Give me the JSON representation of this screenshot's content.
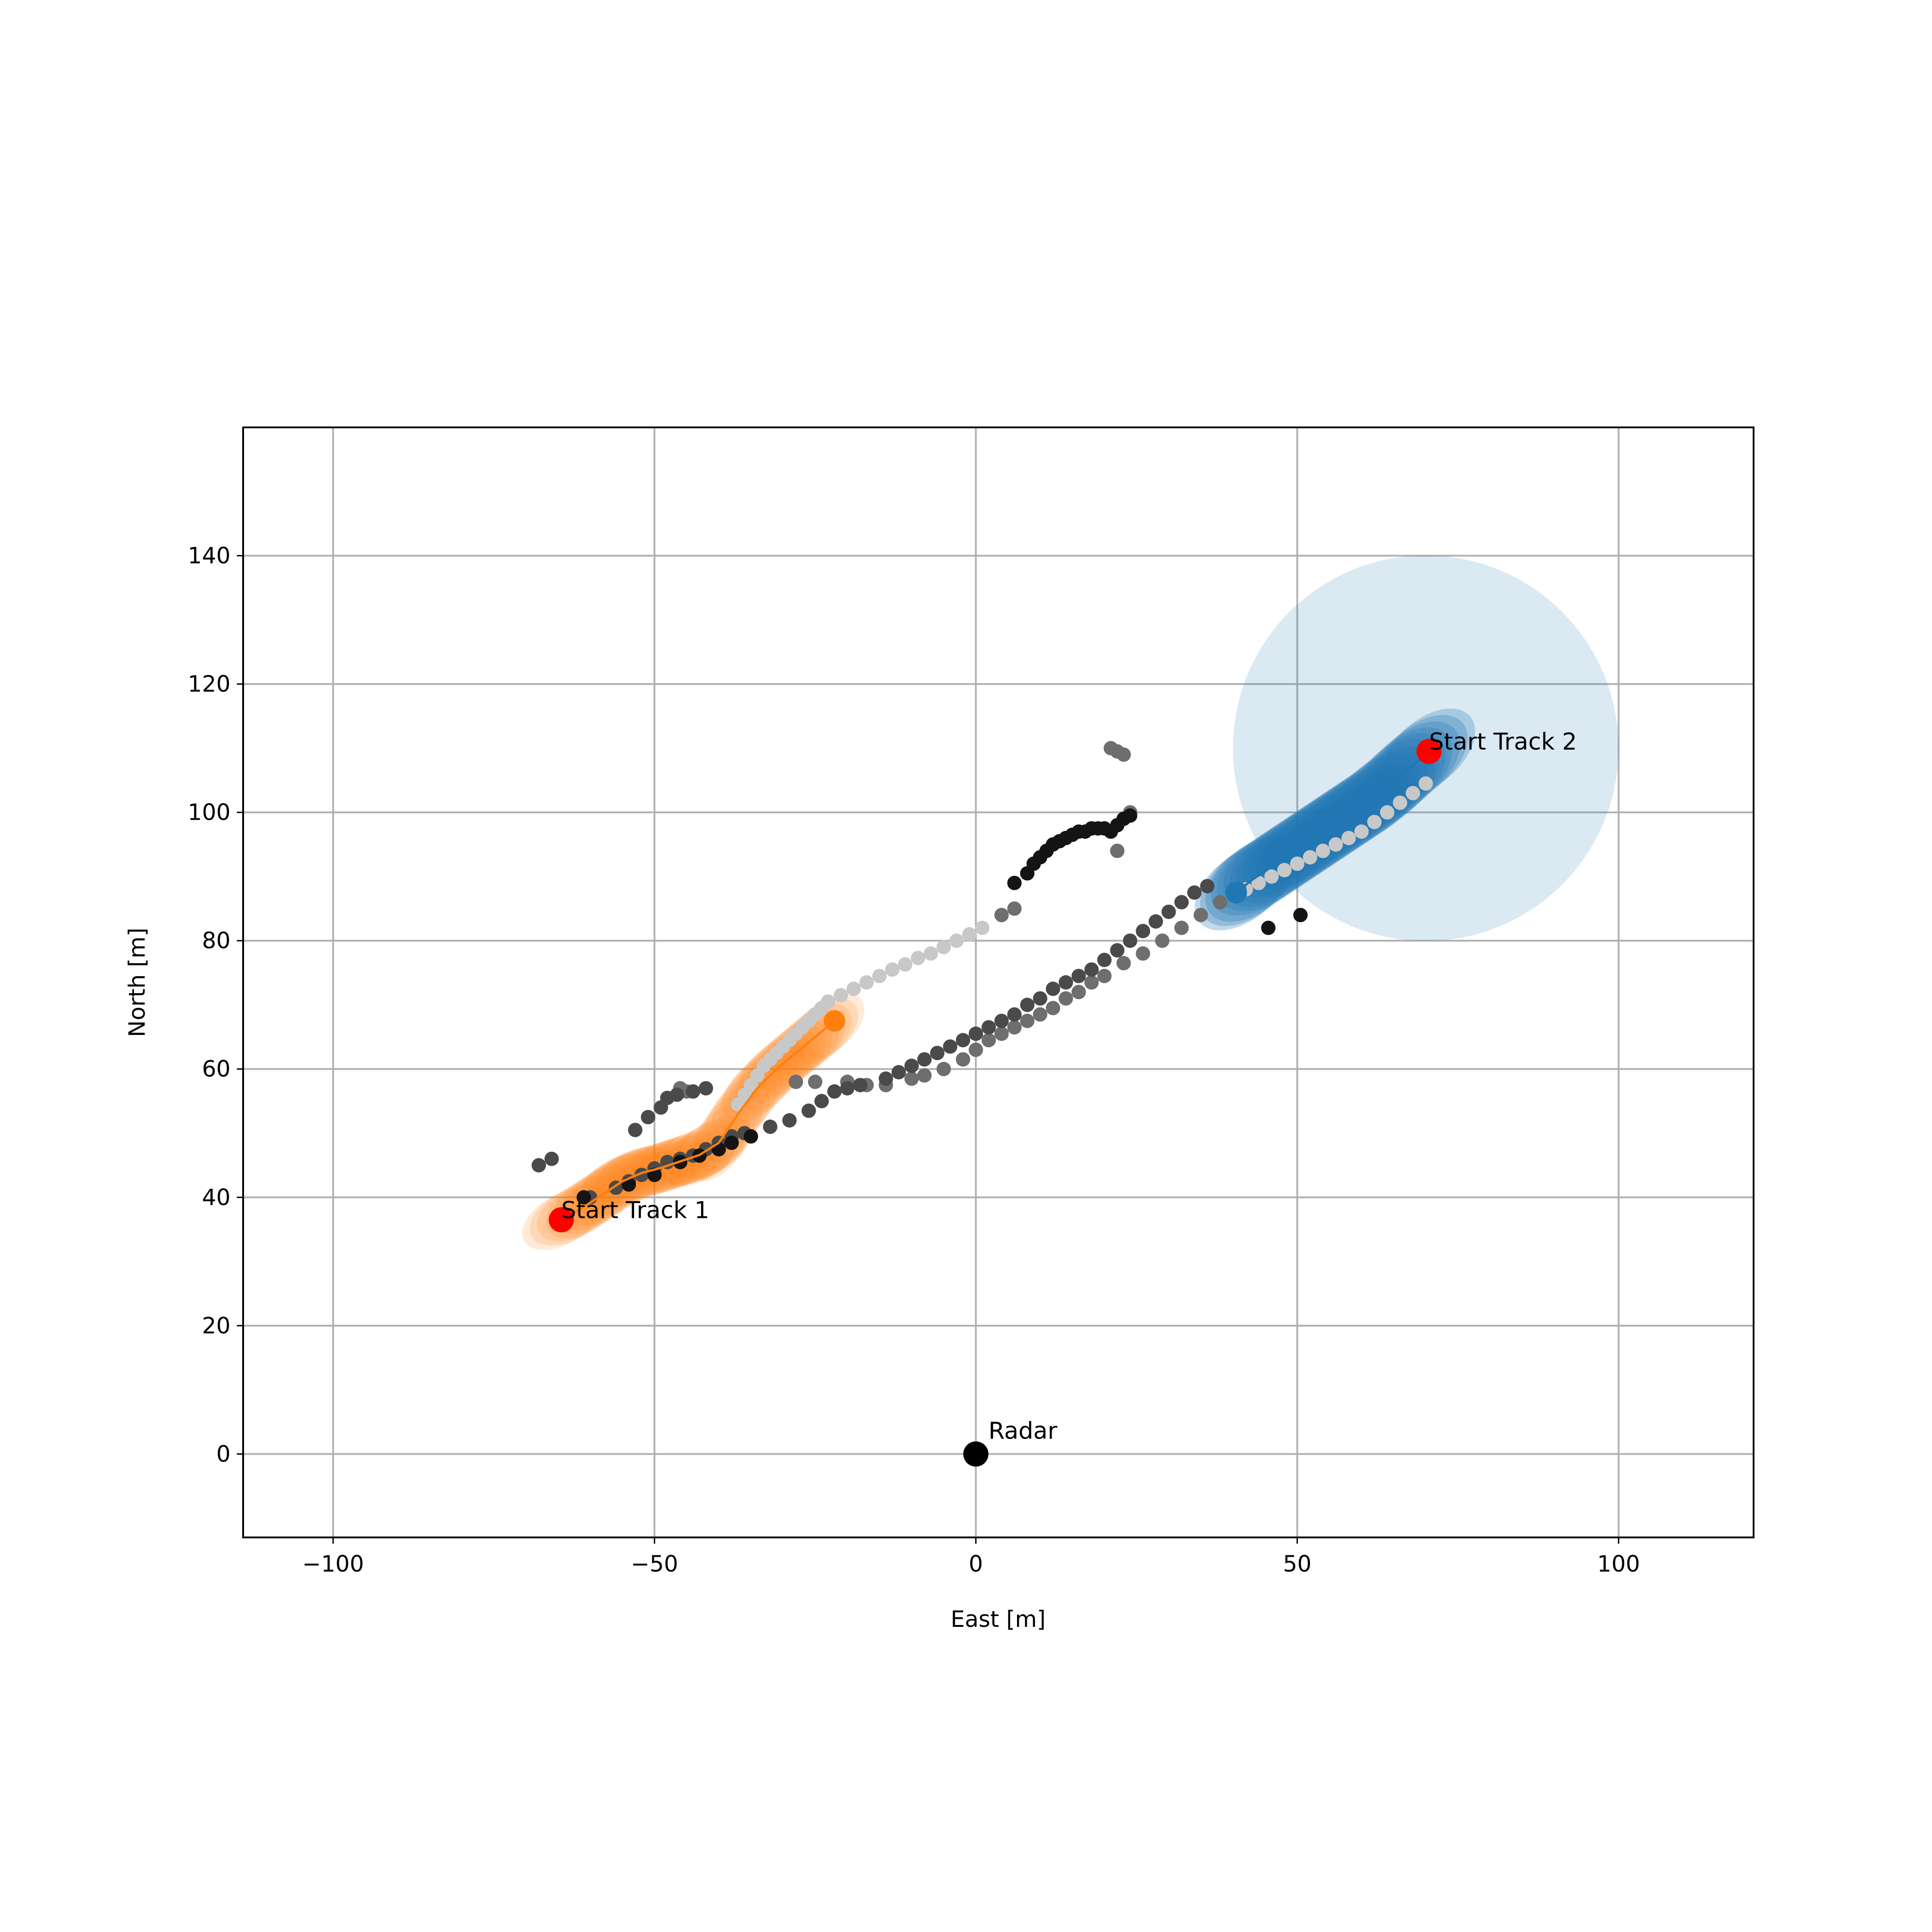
{
  "chart_data": {
    "type": "scatter",
    "title": "",
    "xlabel": "East [m]",
    "ylabel": "North [m]",
    "xlim": [
      -114,
      121
    ],
    "ylim": [
      -13,
      160
    ],
    "xticks": [
      -100,
      -50,
      0,
      50,
      100
    ],
    "yticks": [
      0,
      20,
      40,
      60,
      80,
      100,
      120,
      140
    ],
    "xtick_labels": [
      "−100",
      "−50",
      "0",
      "50",
      "100"
    ],
    "ytick_labels": [
      "0",
      "20",
      "40",
      "60",
      "80",
      "100",
      "120",
      "140"
    ],
    "grid": true,
    "legend": false,
    "colors": {
      "track1": "#ff7f0e",
      "track2": "#1f77b4",
      "start_marker": "#ff0000",
      "radar": "#000000",
      "grid": "#b0b0b0"
    },
    "annotations": [
      {
        "label": "Start Track 1",
        "x": -64.5,
        "y": 36.5
      },
      {
        "label": "Start Track 2",
        "x": 70.5,
        "y": 109.5
      },
      {
        "label": "Radar",
        "x": 0,
        "y": 0
      }
    ],
    "track2_gate": {
      "x": 70,
      "y": 110,
      "radius": 30
    },
    "track1_path": [
      [
        -64.5,
        36.5
      ],
      [
        -61,
        38.5
      ],
      [
        -58,
        40.5
      ],
      [
        -55,
        42.5
      ],
      [
        -52,
        43.8
      ],
      [
        -49,
        44.6
      ],
      [
        -46,
        45.6
      ],
      [
        -43,
        46.6
      ],
      [
        -40,
        48.5
      ],
      [
        -37,
        53
      ],
      [
        -34,
        57
      ],
      [
        -31,
        60
      ],
      [
        -28,
        62.5
      ],
      [
        -25,
        65
      ],
      [
        -22,
        67.5
      ]
    ],
    "track2_path": [
      [
        70.5,
        109.5
      ],
      [
        67,
        106.5
      ],
      [
        64,
        103.8
      ],
      [
        61,
        101.5
      ],
      [
        58,
        99.5
      ],
      [
        55,
        97.5
      ],
      [
        52,
        95.5
      ],
      [
        49,
        93.5
      ],
      [
        46,
        91.5
      ],
      [
        43,
        89.5
      ],
      [
        40.5,
        87.5
      ]
    ],
    "detections_light": [
      [
        -37,
        54.5
      ],
      [
        -36,
        56
      ],
      [
        -35,
        57.5
      ],
      [
        -34,
        59
      ],
      [
        -33,
        60.5
      ],
      [
        -32,
        61.5
      ],
      [
        -31,
        62.5
      ],
      [
        -30,
        63.5
      ],
      [
        -29,
        64.5
      ],
      [
        -28,
        65.5
      ],
      [
        -27,
        66.5
      ],
      [
        -26,
        67.5
      ],
      [
        -25,
        68.5
      ],
      [
        -24,
        69.5
      ],
      [
        -23,
        70.5
      ],
      [
        -21,
        71.5
      ],
      [
        -19,
        72.5
      ],
      [
        -17,
        73.5
      ],
      [
        -15,
        74.5
      ],
      [
        -13,
        75.5
      ],
      [
        -11,
        76.3
      ],
      [
        -9,
        77.3
      ],
      [
        -7,
        78
      ],
      [
        -5,
        79
      ],
      [
        -3,
        80
      ],
      [
        -1,
        81
      ],
      [
        1,
        82
      ],
      [
        42,
        88
      ],
      [
        44,
        89
      ],
      [
        46,
        90
      ],
      [
        48,
        91
      ],
      [
        50,
        92
      ],
      [
        52,
        93
      ],
      [
        54,
        94
      ],
      [
        56,
        95
      ],
      [
        58,
        96
      ],
      [
        60,
        97
      ],
      [
        62,
        98.5
      ],
      [
        64,
        100
      ],
      [
        66,
        101.5
      ],
      [
        68,
        103
      ],
      [
        70,
        104.5
      ]
    ],
    "detections_mid": [
      [
        4,
        84
      ],
      [
        6,
        85
      ],
      [
        21,
        110
      ],
      [
        22,
        109.5
      ],
      [
        23,
        109
      ],
      [
        -28,
        58
      ],
      [
        -25,
        58
      ],
      [
        -20,
        58
      ],
      [
        -17,
        57.5
      ],
      [
        -14,
        57.5
      ],
      [
        -10,
        58.5
      ],
      [
        -8,
        59
      ],
      [
        -5,
        60
      ],
      [
        -2,
        61.5
      ],
      [
        0,
        63
      ],
      [
        2,
        64.5
      ],
      [
        4,
        65.5
      ],
      [
        6,
        66.5
      ],
      [
        8,
        67.5
      ],
      [
        10,
        68.5
      ],
      [
        12,
        69.5
      ],
      [
        14,
        71
      ],
      [
        16,
        72
      ],
      [
        18,
        73.5
      ],
      [
        20,
        74.5
      ],
      [
        23,
        76.5
      ],
      [
        26,
        78
      ],
      [
        29,
        80
      ],
      [
        32,
        82
      ],
      [
        35,
        84
      ],
      [
        38,
        86
      ],
      [
        41,
        88
      ],
      [
        24,
        100
      ],
      [
        22,
        94
      ],
      [
        -46,
        57
      ],
      [
        -45,
        56.5
      ]
    ],
    "detections_dark": [
      [
        -68,
        45
      ],
      [
        -66,
        46
      ],
      [
        -60,
        40
      ],
      [
        -56,
        41.5
      ],
      [
        -54,
        42.5
      ],
      [
        -52,
        43.5
      ],
      [
        -50,
        44.5
      ],
      [
        -48,
        45.5
      ],
      [
        -46,
        46
      ],
      [
        -44,
        46.5
      ],
      [
        -42,
        47.5
      ],
      [
        -40,
        48.5
      ],
      [
        -38,
        49.5
      ],
      [
        -36,
        50
      ],
      [
        -32,
        51
      ],
      [
        -29,
        52
      ],
      [
        -26,
        53.5
      ],
      [
        -24,
        55
      ],
      [
        -22,
        56.5
      ],
      [
        -20,
        57
      ],
      [
        -18,
        57.5
      ],
      [
        -14,
        58.5
      ],
      [
        -12,
        59.5
      ],
      [
        -10,
        60.5
      ],
      [
        -8,
        61.5
      ],
      [
        -6,
        62.5
      ],
      [
        -4,
        63.5
      ],
      [
        -2,
        64.5
      ],
      [
        0,
        65.5
      ],
      [
        2,
        66.5
      ],
      [
        4,
        67.5
      ],
      [
        6,
        68.5
      ],
      [
        8,
        70
      ],
      [
        10,
        71
      ],
      [
        12,
        72.5
      ],
      [
        14,
        73.5
      ],
      [
        16,
        74.5
      ],
      [
        18,
        75.5
      ],
      [
        20,
        77
      ],
      [
        22,
        78.5
      ],
      [
        24,
        80
      ],
      [
        26,
        81.5
      ],
      [
        28,
        83
      ],
      [
        30,
        84.5
      ],
      [
        32,
        86
      ],
      [
        34,
        87.5
      ],
      [
        36,
        88.5
      ],
      [
        -53,
        50.5
      ],
      [
        -51,
        52.5
      ],
      [
        -49,
        54
      ],
      [
        -48,
        55.5
      ],
      [
        -46.5,
        56
      ],
      [
        -44,
        56.5
      ],
      [
        -42,
        57
      ]
    ],
    "detections_black": [
      [
        -61,
        40
      ],
      [
        -54,
        42
      ],
      [
        -50,
        43.5
      ],
      [
        -46,
        45.5
      ],
      [
        -43,
        46.5
      ],
      [
        -40,
        47.5
      ],
      [
        -38,
        48.5
      ],
      [
        -35,
        49.5
      ],
      [
        6,
        89
      ],
      [
        8,
        90.5
      ],
      [
        9,
        92
      ],
      [
        10,
        93
      ],
      [
        11,
        94
      ],
      [
        12,
        95
      ],
      [
        13,
        95.5
      ],
      [
        14,
        96
      ],
      [
        15,
        96.5
      ],
      [
        16,
        97
      ],
      [
        17,
        97
      ],
      [
        18,
        97.5
      ],
      [
        19,
        97.5
      ],
      [
        20,
        97.5
      ],
      [
        21,
        97
      ],
      [
        22,
        98
      ],
      [
        23,
        99
      ],
      [
        24,
        99.5
      ],
      [
        45.5,
        82
      ],
      [
        50.5,
        84
      ]
    ],
    "radar": {
      "x": 0,
      "y": 0
    }
  }
}
